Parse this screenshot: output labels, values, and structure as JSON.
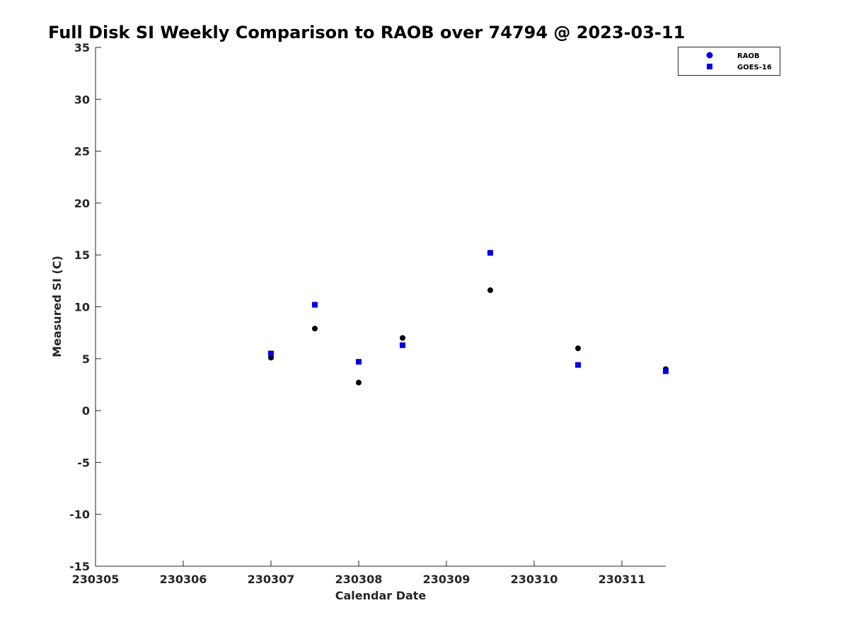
{
  "chart_data": {
    "type": "scatter",
    "title": "Full Disk SI Weekly Comparison to RAOB over 74794 @ 2023-03-11",
    "xlabel": "Calendar Date",
    "ylabel": "Measured SI (C)",
    "xlim": [
      "230305",
      "230311.5"
    ],
    "ylim": [
      -15,
      35
    ],
    "x_ticks": [
      "230305",
      "230306",
      "230307",
      "230308",
      "230309",
      "230310",
      "230311"
    ],
    "y_ticks": [
      35,
      30,
      25,
      20,
      15,
      10,
      5,
      0,
      -5,
      -10,
      -15
    ],
    "grid": false,
    "legend_position": "top-right",
    "series": [
      {
        "name": "RAOB",
        "marker": "circle",
        "legend_color": "#0000e0",
        "point_color": "#000000",
        "x": [
          "230307",
          "230307.5",
          "230308",
          "230308.5",
          "230309.5",
          "230310.5",
          "230311.5"
        ],
        "values": [
          5.1,
          7.9,
          2.7,
          7.0,
          11.6,
          6.0,
          4.0
        ]
      },
      {
        "name": "GOES-16",
        "marker": "square",
        "legend_color": "#0000e0",
        "point_color": "#0000e0",
        "x": [
          "230307",
          "230307.5",
          "230308",
          "230308.5",
          "230309.5",
          "230310.5",
          "230311.5"
        ],
        "values": [
          5.5,
          10.2,
          4.7,
          6.3,
          15.2,
          4.4,
          3.8
        ]
      }
    ]
  }
}
